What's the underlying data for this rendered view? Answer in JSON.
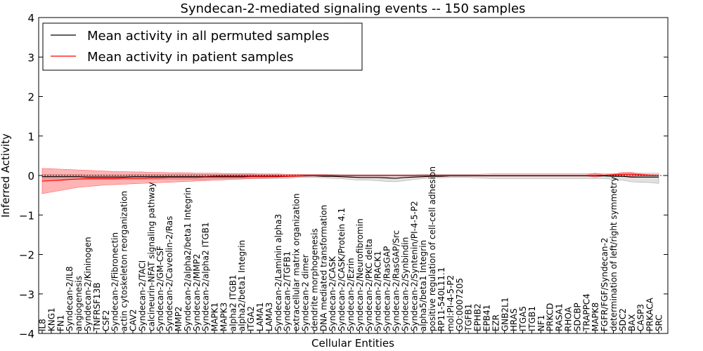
{
  "chart_data": {
    "type": "line",
    "title": "Syndecan-2-mediated signaling events -- 150 samples",
    "xlabel": "Cellular Entities",
    "ylabel": "Inferred Activity",
    "ylim": [
      -4,
      4
    ],
    "yticks": [
      -4,
      -3,
      -2,
      -1,
      0,
      1,
      2,
      3,
      4
    ],
    "legend": {
      "placement": "top-left",
      "entries": [
        {
          "label": "Mean activity in all permuted samples",
          "color": "#000000"
        },
        {
          "label": "Mean activity in patient samples",
          "color": "#ff0000"
        }
      ]
    },
    "categories": [
      "IL8",
      "KNG1",
      "FN1",
      "Syndecan-2/IL8",
      "angiogenesis",
      "Syndecan-2/Kininogen",
      "TNFRSF13B",
      "CSF2",
      "Syndecan-2/Fibronectin",
      "actin cytoskeleton reorganization",
      "CAV2",
      "Syndecan-2/TACI",
      "calcineurin-NFAT signaling pathway",
      "Syndecan-2/GM-CSF",
      "Syndecan-2/Caveolin-2/Ras",
      "MMP2",
      "Syndecan-2/alpha2/beta1 Integrin",
      "Syndecan-2/MMP2",
      "Syndecan-2/alpha2 ITGB1",
      "MAPK1",
      "MAPK3",
      "alpha2 ITGB1",
      "alpha2/beta1 Integrin",
      "ITGA2",
      "LAMA1",
      "LAMA3",
      "Syndecan-2/Laminin alpha3",
      "Syndecan-2/TGFB1",
      "extracellular matrix organization",
      "Syndecan-2 dimer",
      "dendrite morphogenesis",
      "DNA mediated transformation",
      "Syndecan-2/CASK",
      "Syndecan-2/CASK/Protein 4.1",
      "Syndecan-2/Ezrin",
      "Syndecan-2/Neurofibromin",
      "Syndecan-2/PKC delta",
      "Syndecan-2/RACK1",
      "Syndecan-2/RasGAP",
      "Syndecan-2/RasGAP/Src",
      "Syndecan-2/Synbindin",
      "Syndecan-2/Syntenin/PI-4-5-P2",
      "alpha5/beta1 Integrin",
      "positive regulation of cell-cell adhesion",
      "RP11-540L11.1",
      "mol:PI-4-5-P2",
      "GO:0007205",
      "TGFB1",
      "EPHB2",
      "EPB41",
      "EZR",
      "GNB2L1",
      "HRAS",
      "ITGA5",
      "ITGB1",
      "NF1",
      "PRKCD",
      "RASA1",
      "RHOA",
      "SDCBP",
      "TRAPPC4",
      "MAPK8",
      "FGFR/FGF/Syndecan-2",
      "determination of left/right symmetry",
      "SDC2",
      "BAX",
      "CASP3",
      "PRKACA",
      "SRC"
    ],
    "series": [
      {
        "name": "Mean activity in all permuted samples",
        "color": "#000000",
        "values": [
          -0.03,
          -0.03,
          -0.03,
          -0.03,
          -0.03,
          -0.04,
          -0.04,
          -0.04,
          -0.04,
          -0.04,
          -0.03,
          -0.03,
          -0.03,
          -0.03,
          -0.03,
          -0.03,
          -0.03,
          -0.03,
          -0.03,
          -0.02,
          -0.02,
          -0.02,
          -0.02,
          -0.02,
          -0.02,
          -0.02,
          -0.02,
          -0.02,
          -0.01,
          -0.01,
          -0.01,
          -0.02,
          -0.02,
          -0.03,
          -0.04,
          -0.05,
          -0.05,
          -0.05,
          -0.06,
          -0.07,
          -0.05,
          -0.04,
          -0.03,
          -0.02,
          -0.02,
          -0.01,
          -0.01,
          -0.01,
          -0.01,
          -0.01,
          -0.01,
          -0.01,
          -0.01,
          -0.01,
          -0.01,
          -0.01,
          -0.01,
          -0.01,
          -0.01,
          -0.01,
          -0.01,
          -0.01,
          -0.01,
          -0.02,
          -0.02,
          -0.04,
          -0.04,
          -0.04,
          -0.04
        ],
        "band_upper": [
          0.03,
          0.03,
          0.03,
          0.03,
          0.03,
          0.02,
          0.02,
          0.02,
          0.02,
          0.02,
          0.03,
          0.03,
          0.03,
          0.03,
          0.03,
          0.03,
          0.03,
          0.03,
          0.03,
          0.03,
          0.03,
          0.03,
          0.03,
          0.03,
          0.03,
          0.03,
          0.03,
          0.03,
          0.03,
          0.03,
          0.03,
          0.03,
          0.03,
          0.02,
          0.02,
          0.02,
          0.02,
          0.02,
          0.02,
          0.02,
          0.02,
          0.02,
          0.03,
          0.03,
          0.03,
          0.03,
          0.03,
          0.03,
          0.03,
          0.04,
          0.05,
          0.05,
          0.05,
          0.05,
          0.05,
          0.05,
          0.05,
          0.05,
          0.05,
          0.05,
          0.05,
          0.05,
          0.05,
          0.05,
          0.05,
          0.06,
          0.06,
          0.06,
          0.06
        ],
        "band_lower": [
          -0.1,
          -0.1,
          -0.1,
          -0.1,
          -0.1,
          -0.1,
          -0.1,
          -0.1,
          -0.1,
          -0.1,
          -0.1,
          -0.1,
          -0.1,
          -0.1,
          -0.1,
          -0.1,
          -0.1,
          -0.1,
          -0.1,
          -0.08,
          -0.08,
          -0.08,
          -0.08,
          -0.08,
          -0.08,
          -0.08,
          -0.08,
          -0.08,
          -0.05,
          -0.05,
          -0.05,
          -0.06,
          -0.07,
          -0.08,
          -0.1,
          -0.12,
          -0.12,
          -0.13,
          -0.15,
          -0.16,
          -0.13,
          -0.1,
          -0.08,
          -0.06,
          -0.06,
          -0.05,
          -0.05,
          -0.05,
          -0.06,
          -0.07,
          -0.08,
          -0.08,
          -0.08,
          -0.08,
          -0.08,
          -0.08,
          -0.08,
          -0.08,
          -0.08,
          -0.08,
          -0.08,
          -0.08,
          -0.08,
          -0.1,
          -0.12,
          -0.16,
          -0.17,
          -0.18,
          -0.2
        ]
      },
      {
        "name": "Mean activity in patient samples",
        "color": "#ff0000",
        "values": [
          -0.14,
          -0.13,
          -0.12,
          -0.1,
          -0.09,
          -0.08,
          -0.08,
          -0.08,
          -0.08,
          -0.07,
          -0.07,
          -0.07,
          -0.06,
          -0.06,
          -0.05,
          -0.05,
          -0.05,
          -0.05,
          -0.04,
          -0.04,
          -0.04,
          -0.04,
          -0.04,
          -0.03,
          -0.03,
          -0.03,
          -0.03,
          -0.02,
          -0.01,
          0.0,
          0.0,
          0.0,
          0.0,
          0.0,
          0.0,
          0.0,
          0.0,
          0.0,
          0.0,
          0.0,
          0.0,
          0.0,
          0.0,
          0.0,
          0.0,
          0.0,
          0.0,
          0.0,
          0.0,
          0.0,
          0.0,
          0.0,
          0.0,
          0.0,
          0.0,
          0.0,
          0.0,
          0.0,
          0.0,
          0.0,
          0.0,
          0.0,
          0.01,
          0.02,
          0.03,
          0.03,
          0.02,
          0.01,
          0.01
        ],
        "band_upper": [
          0.18,
          0.17,
          0.16,
          0.15,
          0.14,
          0.13,
          0.12,
          0.11,
          0.1,
          0.1,
          0.09,
          0.09,
          0.08,
          0.08,
          0.07,
          0.07,
          0.07,
          0.06,
          0.06,
          0.06,
          0.05,
          0.05,
          0.05,
          0.05,
          0.04,
          0.04,
          0.04,
          0.03,
          0.03,
          0.02,
          0.02,
          0.02,
          0.01,
          0.01,
          0.01,
          0.01,
          0.01,
          0.01,
          0.01,
          0.01,
          0.01,
          0.01,
          0.01,
          0.01,
          0.01,
          0.01,
          0.01,
          0.01,
          0.01,
          0.01,
          0.01,
          0.01,
          0.01,
          0.01,
          0.01,
          0.01,
          0.01,
          0.01,
          0.01,
          0.01,
          0.01,
          0.06,
          0.01,
          0.03,
          0.08,
          0.08,
          0.04,
          0.02,
          0.01
        ],
        "band_lower": [
          -0.46,
          -0.42,
          -0.38,
          -0.34,
          -0.3,
          -0.28,
          -0.26,
          -0.24,
          -0.23,
          -0.22,
          -0.21,
          -0.2,
          -0.19,
          -0.18,
          -0.17,
          -0.16,
          -0.15,
          -0.14,
          -0.13,
          -0.12,
          -0.11,
          -0.1,
          -0.09,
          -0.08,
          -0.07,
          -0.06,
          -0.05,
          -0.04,
          -0.03,
          -0.02,
          -0.01,
          -0.01,
          -0.01,
          -0.01,
          -0.01,
          -0.01,
          -0.01,
          -0.01,
          -0.01,
          -0.01,
          -0.01,
          -0.01,
          -0.01,
          -0.01,
          -0.01,
          -0.01,
          -0.01,
          -0.01,
          -0.01,
          -0.01,
          -0.01,
          -0.01,
          -0.01,
          -0.01,
          -0.01,
          -0.01,
          -0.01,
          -0.01,
          -0.01,
          -0.01,
          -0.01,
          -0.04,
          -0.01,
          -0.01,
          -0.02,
          -0.02,
          -0.01,
          -0.01,
          -0.01
        ]
      }
    ],
    "baseline": 0,
    "grid": false
  }
}
